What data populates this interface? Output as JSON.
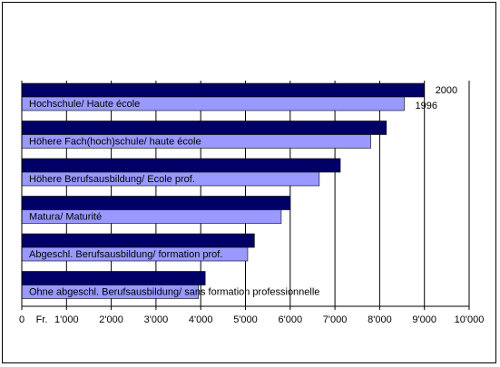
{
  "chart_data": {
    "type": "bar",
    "orientation": "horizontal",
    "categories": [
      "Hochschule/ Haute école",
      "Höhere Fach(hoch)schule/ haute école",
      "Höhere Berufsausbildung/ Ecole prof.",
      "Matura/ Maturité",
      "Abgeschl. Berufsausbildung/ formation prof.",
      "Ohne abgeschl. Berufsausbildung/ sans formation professionnelle"
    ],
    "series": [
      {
        "name": "2000",
        "color": "#000066",
        "values": [
          9000,
          8150,
          7120,
          6000,
          5200,
          4100
        ]
      },
      {
        "name": "1996",
        "color": "#9999ff",
        "values": [
          8550,
          7800,
          6650,
          5800,
          5050,
          3950
        ]
      }
    ],
    "xlim": [
      0,
      10000
    ],
    "x_ticks": [
      "0",
      "1'000",
      "2'000",
      "3'000",
      "4'000",
      "5'000",
      "6'000",
      "7'000",
      "8'000",
      "9'000",
      "10'000"
    ],
    "x_unit": "Fr.",
    "grid": "vertical",
    "legend": "series names labeled beside top bars"
  }
}
